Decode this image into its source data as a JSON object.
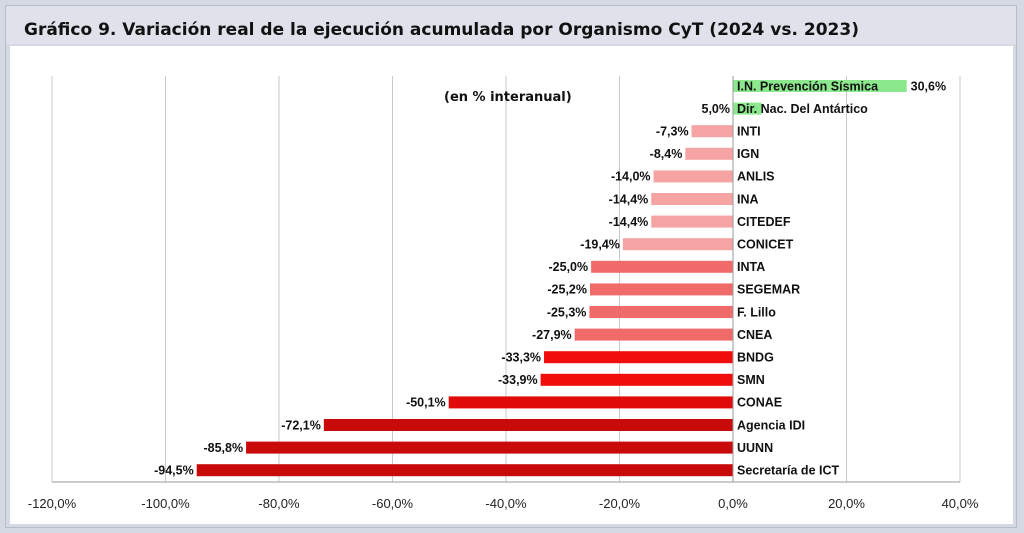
{
  "title": "Gráfico 9. Variación real de la ejecución acumulada por Organismo CyT (2024 vs. 2023)",
  "chart_data": {
    "type": "bar",
    "orientation": "horizontal",
    "subtitle": "(en % interanual)",
    "xlabel": "",
    "ylabel": "",
    "xlim": [
      -120,
      40
    ],
    "x_ticks": [
      "-120,0%",
      "-100,0%",
      "-80,0%",
      "-60,0%",
      "-40,0%",
      "-20,0%",
      "0,0%",
      "20,0%",
      "40,0%"
    ],
    "x_tick_values": [
      -120,
      -100,
      -80,
      -60,
      -40,
      -20,
      0,
      20,
      40
    ],
    "grid": true,
    "categories": [
      "I.N. Prevención Sísmica",
      "Dir. Nac. Del Antártico",
      "INTI",
      "IGN",
      "ANLIS",
      "INA",
      "CITEDEF",
      "CONICET",
      "INTA",
      "SEGEMAR",
      "F. Lillo",
      "CNEA",
      "BNDG",
      "SMN",
      "CONAE",
      "Agencia IDI",
      "UUNN",
      "Secretaría de ICT"
    ],
    "values": [
      30.6,
      5.0,
      -7.3,
      -8.4,
      -14.0,
      -14.4,
      -14.4,
      -19.4,
      -25.0,
      -25.2,
      -25.3,
      -27.9,
      -33.3,
      -33.9,
      -50.1,
      -72.1,
      -85.8,
      -94.5
    ],
    "value_labels": [
      "30,6%",
      "5,0%",
      "-7,3%",
      "-8,4%",
      "-14,0%",
      "-14,4%",
      "-14,4%",
      "-19,4%",
      "-25,0%",
      "-25,2%",
      "-25,3%",
      "-27,9%",
      "-33,3%",
      "-33,9%",
      "-50,1%",
      "-72,1%",
      "-85,8%",
      "-94,5%"
    ],
    "colors": [
      "#8ce88c",
      "#8ce88c",
      "#f6a3a3",
      "#f6a3a3",
      "#f6a3a3",
      "#f6a3a3",
      "#f6a3a3",
      "#f6a3a3",
      "#f06a6a",
      "#f06a6a",
      "#f06a6a",
      "#f06a6a",
      "#f20d0d",
      "#f20d0d",
      "#e10b0b",
      "#c80a0a",
      "#c80a0a",
      "#c80a0a"
    ]
  }
}
